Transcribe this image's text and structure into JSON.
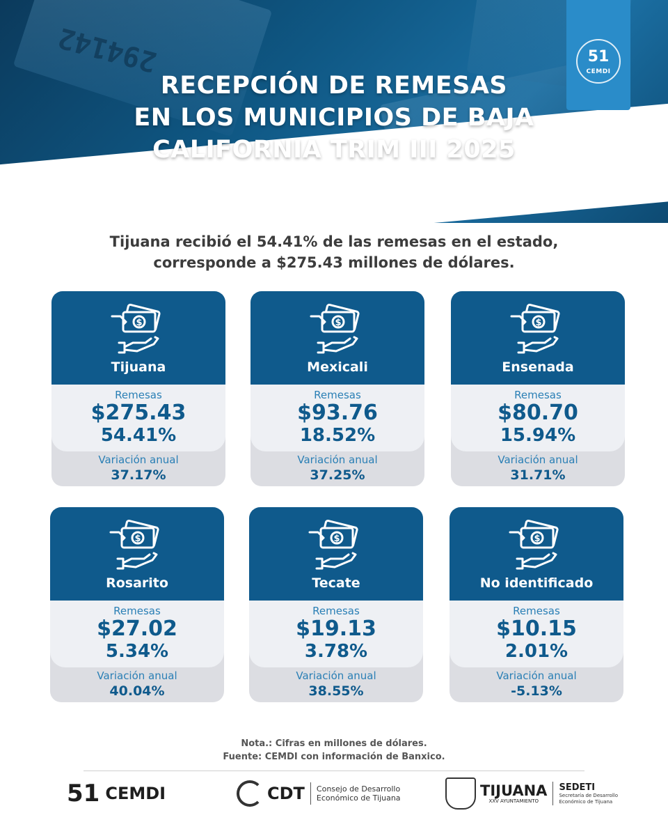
{
  "header": {
    "title_lines": [
      "RECEPCIÓN DE REMESAS",
      "EN LOS MUNICIPIOS DE BAJA",
      "CALIFORNIA TRIM III 2025"
    ],
    "serial_text": "294142",
    "badge": "CEMDI",
    "badge_mark": "51"
  },
  "subtitle": {
    "line1": "Tijuana recibió el 54.41% de las remesas en el estado,",
    "line2": "corresponde a $275.43 millones de dólares."
  },
  "cards": [
    {
      "name": "Tijuana",
      "label": "Remesas",
      "amount": "$275.43",
      "pct": "54.41%",
      "var_label": "Variación anual",
      "var_value": "37.17%"
    },
    {
      "name": "Mexicali",
      "label": "Remesas",
      "amount": "$93.76",
      "pct": "18.52%",
      "var_label": "Variación anual",
      "var_value": "37.25%"
    },
    {
      "name": "Ensenada",
      "label": "Remesas",
      "amount": "$80.70",
      "pct": "15.94%",
      "var_label": "Variación anual",
      "var_value": "31.71%"
    },
    {
      "name": "Rosarito",
      "label": "Remesas",
      "amount": "$27.02",
      "pct": "5.34%",
      "var_label": "Variación anual",
      "var_value": "40.04%"
    },
    {
      "name": "Tecate",
      "label": "Remesas",
      "amount": "$19.13",
      "pct": "3.78%",
      "var_label": "Variación anual",
      "var_value": "38.55%"
    },
    {
      "name": "No identificado",
      "label": "Remesas",
      "amount": "$10.15",
      "pct": "2.01%",
      "var_label": "Variación anual",
      "var_value": "-5.13%"
    }
  ],
  "footer": {
    "note": "Nota.: Cifras en millones de dólares.",
    "source": "Fuente: CEMDI con información de Banxico.",
    "logos": {
      "cemdi": "CEMDI",
      "cemdi_mark": "51",
      "cdt": "CDT",
      "cdt_sub1": "Consejo de Desarrollo",
      "cdt_sub2": "Económico de Tijuana",
      "tijuana": "TIJUANA",
      "tijuana_sub": "XXV AYUNTAMIENTO",
      "sedeti": "SEDETI",
      "sedeti_sub1": "Secretaría de Desarrollo",
      "sedeti_sub2": "Económico de Tijuana"
    }
  },
  "colors": {
    "primary": "#0f5a8c",
    "accent": "#2a7fb5",
    "card_bg": "#dcdde2"
  }
}
